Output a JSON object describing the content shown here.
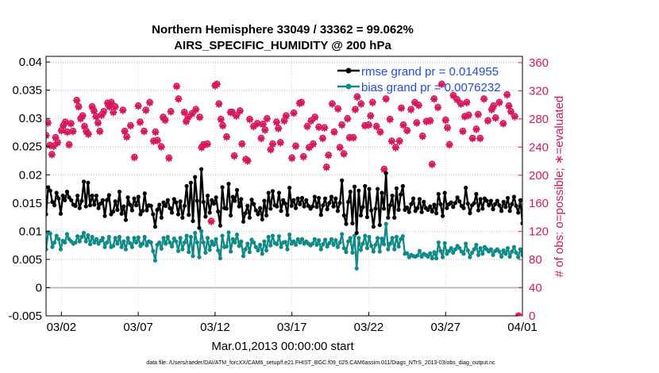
{
  "chart_data": {
    "type": "line",
    "title_line1": "Northern Hemisphere 33049 / 33362 = 99.062%",
    "title_line2": "AIRS_SPECIFIC_HUMIDITY @ 200 hPa",
    "xlabel": "Mar.01,2013 00:00:00 start",
    "ylabel_right": "# of obs: o=possible; ∗=evaluated",
    "footnote": "data file: /Users/raeder/DAI/ATM_forcXX/CAM6_setup/f.e21.FHIST_BGC.f09_025.CAM6assim.011/Diags_NTrS_2013-03/obs_diag_output.nc",
    "xlim": [
      0,
      31
    ],
    "ylim_left": [
      -0.005,
      0.041
    ],
    "ylim_right": [
      0,
      369
    ],
    "x_ticks": [
      {
        "x": 1,
        "label": "03/02"
      },
      {
        "x": 6,
        "label": "03/07"
      },
      {
        "x": 11,
        "label": "03/12"
      },
      {
        "x": 16,
        "label": "03/17"
      },
      {
        "x": 21,
        "label": "03/22"
      },
      {
        "x": 26,
        "label": "03/27"
      },
      {
        "x": 31,
        "label": "04/01"
      }
    ],
    "y_ticks_left": [
      {
        "v": -0.005,
        "label": "-0.005"
      },
      {
        "v": 0,
        "label": "0"
      },
      {
        "v": 0.005,
        "label": "0.005"
      },
      {
        "v": 0.01,
        "label": "0.01"
      },
      {
        "v": 0.015,
        "label": "0.015"
      },
      {
        "v": 0.02,
        "label": "0.02"
      },
      {
        "v": 0.025,
        "label": "0.025"
      },
      {
        "v": 0.03,
        "label": "0.03"
      },
      {
        "v": 0.035,
        "label": "0.035"
      },
      {
        "v": 0.04,
        "label": "0.04"
      }
    ],
    "y_ticks_right": [
      {
        "v": 0,
        "label": "0"
      },
      {
        "v": 40,
        "label": "40"
      },
      {
        "v": 80,
        "label": "80"
      },
      {
        "v": 120,
        "label": "120"
      },
      {
        "v": 160,
        "label": "160"
      },
      {
        "v": 200,
        "label": "200"
      },
      {
        "v": 240,
        "label": "240"
      },
      {
        "v": 280,
        "label": "280"
      },
      {
        "v": 320,
        "label": "320"
      },
      {
        "v": 360,
        "label": "360"
      }
    ],
    "legend": [
      {
        "name": "rmse grand pr = 0.014955",
        "color": "#000000"
      },
      {
        "name": "bias grand pr = 0.0076232",
        "color": "#108a86"
      }
    ],
    "series": [
      {
        "name": "rmse",
        "color": "#000000",
        "values": [
          0.013,
          0.0178,
          0.0172,
          0.0152,
          0.0146,
          0.0168,
          0.0158,
          0.0131,
          0.0163,
          0.0155,
          0.017,
          0.016,
          0.0155,
          0.0147,
          0.0145,
          0.0163,
          0.0141,
          0.0154,
          0.0188,
          0.0144,
          0.0186,
          0.0146,
          0.0163,
          0.0147,
          0.0163,
          0.0141,
          0.0149,
          0.0155,
          0.0127,
          0.0155,
          0.0164,
          0.013,
          0.0135,
          0.0153,
          0.0138,
          0.017,
          0.0131,
          0.0144,
          0.012,
          0.016,
          0.0147,
          0.0137,
          0.0158,
          0.0146,
          0.0161,
          0.013,
          0.0136,
          0.0167,
          0.0137,
          0.0146,
          0.0145,
          0.013,
          0.0108,
          0.0138,
          0.0147,
          0.0124,
          0.0151,
          0.0145,
          0.0155,
          0.0141,
          0.0133,
          0.0157,
          0.0151,
          0.013,
          0.0153,
          0.0124,
          0.0145,
          0.018,
          0.0129,
          0.0186,
          0.0118,
          0.0196,
          0.0154,
          0.0106,
          0.021,
          0.0152,
          0.0126,
          0.0163,
          0.0133,
          0.0155,
          0.0149,
          0.016,
          0.0135,
          0.011,
          0.0178,
          0.0141,
          0.014,
          0.0184,
          0.0128,
          0.0161,
          0.0154,
          0.0173,
          0.0144,
          0.0157,
          0.0117,
          0.0132,
          0.0145,
          0.0124,
          0.0156,
          0.0148,
          0.0137,
          0.013,
          0.0141,
          0.0121,
          0.0154,
          0.0128,
          0.0168,
          0.014,
          0.0171,
          0.0146,
          0.0144,
          0.0168,
          0.0136,
          0.0155,
          0.0149,
          0.0129,
          0.0177,
          0.0145,
          0.0155,
          0.0141,
          0.0158,
          0.0148,
          0.0159,
          0.0144,
          0.0155,
          0.0145,
          0.014,
          0.0144,
          0.0161,
          0.0143,
          0.0159,
          0.0129,
          0.0146,
          0.0158,
          0.0139,
          0.015,
          0.0161,
          0.0144,
          0.0158,
          0.0136,
          0.015,
          0.019,
          0.0128,
          0.0113,
          0.0152,
          0.017,
          0.0114,
          0.0179,
          0.0097,
          0.0172,
          0.0128,
          0.0143,
          0.018,
          0.0125,
          0.0175,
          0.0137,
          0.0108,
          0.014,
          0.0175,
          0.0111,
          0.0168,
          0.014,
          0.0203,
          0.0124,
          0.0146,
          0.0163,
          0.0124,
          0.0176,
          0.0138,
          0.0165,
          0.018,
          0.0138,
          0.0142,
          0.0134,
          0.0148,
          0.0158,
          0.0136,
          0.0141,
          0.0157,
          0.0134,
          0.0152,
          0.0141,
          0.0138,
          0.0144,
          0.0135,
          0.0147,
          0.0132,
          0.0166,
          0.0148,
          0.0127,
          0.0168,
          0.0141,
          0.0148,
          0.0151,
          0.0143,
          0.015,
          0.016,
          0.0153,
          0.0145,
          0.0141,
          0.0177,
          0.0149,
          0.0132,
          0.0146,
          0.015,
          0.0166,
          0.0137,
          0.0157,
          0.014,
          0.0158,
          0.0154,
          0.0146,
          0.0154,
          0.0139,
          0.0148,
          0.0154,
          0.0146,
          0.0136,
          0.0152,
          0.0143,
          0.0159,
          0.0136,
          0.0148,
          0.0161,
          0.0145,
          0.0133,
          0.0155,
          0.0114
        ]
      },
      {
        "name": "bias",
        "color": "#108a86",
        "values": [
          0.0068,
          0.0098,
          0.0096,
          0.0072,
          0.008,
          0.0092,
          0.0086,
          0.0068,
          0.0083,
          0.008,
          0.0095,
          0.0086,
          0.0082,
          0.0078,
          0.008,
          0.0091,
          0.0082,
          0.009,
          0.0097,
          0.0082,
          0.0093,
          0.0077,
          0.009,
          0.008,
          0.0086,
          0.0078,
          0.0083,
          0.0088,
          0.0072,
          0.008,
          0.009,
          0.0072,
          0.0074,
          0.0088,
          0.0078,
          0.009,
          0.0072,
          0.0082,
          0.0068,
          0.0088,
          0.0079,
          0.0072,
          0.0088,
          0.008,
          0.0089,
          0.0074,
          0.0078,
          0.009,
          0.0075,
          0.0082,
          0.008,
          0.0065,
          0.0048,
          0.0076,
          0.008,
          0.0069,
          0.0088,
          0.0078,
          0.009,
          0.008,
          0.0073,
          0.0087,
          0.0082,
          0.0065,
          0.0088,
          0.0068,
          0.008,
          0.0092,
          0.0063,
          0.009,
          0.0056,
          0.0097,
          0.008,
          0.0054,
          0.01,
          0.008,
          0.0062,
          0.0088,
          0.0067,
          0.0082,
          0.0076,
          0.0086,
          0.0066,
          0.0052,
          0.0092,
          0.0072,
          0.0073,
          0.0098,
          0.0064,
          0.0086,
          0.008,
          0.0094,
          0.0074,
          0.0082,
          0.0056,
          0.0068,
          0.0078,
          0.0063,
          0.0085,
          0.008,
          0.0072,
          0.0066,
          0.0076,
          0.006,
          0.0082,
          0.0066,
          0.009,
          0.0075,
          0.0092,
          0.0079,
          0.0077,
          0.0091,
          0.0072,
          0.008,
          0.0081,
          0.0068,
          0.0094,
          0.0078,
          0.0082,
          0.0076,
          0.0086,
          0.008,
          0.0086,
          0.0078,
          0.0082,
          0.0078,
          0.0075,
          0.0078,
          0.0086,
          0.0076,
          0.0084,
          0.0068,
          0.0077,
          0.0085,
          0.0073,
          0.0079,
          0.0086,
          0.0076,
          0.0084,
          0.0072,
          0.008,
          0.0095,
          0.007,
          0.0063,
          0.0082,
          0.0088,
          0.0062,
          0.0092,
          0.0034,
          0.0088,
          0.0067,
          0.0078,
          0.0092,
          0.007,
          0.009,
          0.0074,
          0.0064,
          0.0076,
          0.0088,
          0.0064,
          0.0087,
          0.0077,
          0.0113,
          0.0068,
          0.0078,
          0.0088,
          0.0068,
          0.009,
          0.0073,
          0.0086,
          0.0091,
          0.006,
          0.0061,
          0.0054,
          0.0058,
          0.0056,
          0.0055,
          0.0057,
          0.0065,
          0.0055,
          0.006,
          0.0058,
          0.0055,
          0.0061,
          0.0052,
          0.0063,
          0.0052,
          0.008,
          0.0065,
          0.0054,
          0.0079,
          0.006,
          0.0065,
          0.007,
          0.0062,
          0.0068,
          0.0074,
          0.007,
          0.0064,
          0.006,
          0.0078,
          0.0066,
          0.0054,
          0.0062,
          0.0068,
          0.0076,
          0.0058,
          0.007,
          0.006,
          0.0072,
          0.0068,
          0.0064,
          0.0068,
          0.0058,
          0.0065,
          0.0068,
          0.0064,
          0.0055,
          0.0066,
          0.006,
          0.007,
          0.0055,
          0.0064,
          0.0072,
          0.0062,
          0.0054,
          0.0068,
          0.0058
        ]
      }
    ],
    "obs_counts": {
      "color": "#d6175e",
      "x": [
        0.0,
        0.12,
        0.25,
        0.38,
        0.5,
        0.62,
        0.75,
        1.0,
        1.12,
        1.25,
        1.38,
        1.5,
        1.62,
        1.75,
        2.0,
        2.12,
        2.25,
        2.38,
        2.5,
        2.62,
        2.75,
        3.0,
        3.12,
        3.25,
        3.38,
        3.5,
        3.62,
        3.75,
        4.0,
        4.12,
        4.25,
        4.38,
        4.5,
        5.0,
        5.12,
        5.25,
        5.5,
        5.75,
        6.0,
        6.12,
        6.38,
        6.5,
        6.75,
        7.0,
        7.12,
        7.25,
        7.5,
        7.62,
        7.75,
        8.0,
        8.12,
        8.5,
        8.62,
        9.0,
        9.12,
        9.25,
        9.5,
        9.75,
        10.0,
        10.12,
        10.25,
        10.5,
        10.75,
        11.0,
        11.12,
        11.25,
        11.38,
        11.5,
        11.75,
        12.0,
        12.12,
        12.25,
        12.38,
        12.62,
        12.75,
        13.0,
        13.12,
        13.25,
        13.5,
        13.75,
        14.0,
        14.12,
        14.25,
        14.38,
        14.62,
        14.75,
        15.0,
        15.12,
        15.25,
        15.5,
        15.62,
        16.0,
        16.12,
        16.25,
        16.5,
        16.62,
        16.75,
        17.0,
        17.12,
        17.25,
        17.38,
        17.5,
        17.75,
        18.0,
        18.12,
        18.25,
        18.38,
        18.62,
        18.75,
        19.0,
        19.12,
        19.25,
        19.38,
        19.62,
        19.75,
        20.0,
        20.12,
        20.25,
        20.5,
        20.75,
        21.0,
        21.12,
        21.25,
        21.5,
        21.75,
        22.0,
        22.12,
        22.38,
        22.5,
        22.75,
        23.0,
        23.12,
        23.25,
        23.5,
        23.75,
        24.0,
        24.12,
        24.25,
        24.5,
        24.75,
        25.0,
        25.12,
        25.25,
        25.5,
        25.75,
        26.0,
        26.12,
        26.25,
        26.5,
        26.75,
        27.0,
        27.12,
        27.25,
        27.38,
        27.5,
        27.75,
        28.0,
        28.12,
        28.25,
        28.5,
        28.75,
        29.0,
        29.12,
        29.25,
        29.5,
        29.75,
        30.0,
        30.12,
        30.25,
        30.5,
        30.75,
        31.0
      ],
      "possible": [
        257,
        275,
        243,
        230,
        242,
        254,
        247,
        264,
        271,
        276,
        262,
        244,
        274,
        263,
        307,
        298,
        281,
        285,
        270,
        263,
        259,
        298,
        292,
        284,
        275,
        263,
        286,
        291,
        303,
        298,
        304,
        290,
        298,
        293,
        263,
        255,
        271,
        226,
        299,
        276,
        263,
        293,
        304,
        249,
        262,
        250,
        241,
        283,
        279,
        225,
        291,
        327,
        309,
        290,
        277,
        283,
        288,
        294,
        283,
        240,
        244,
        245,
        135,
        328,
        330,
        302,
        280,
        271,
        255,
        290,
        290,
        228,
        285,
        292,
        245,
        223,
        221,
        280,
        270,
        274,
        253,
        273,
        265,
        281,
        237,
        245,
        276,
        267,
        247,
        278,
        285,
        225,
        289,
        242,
        303,
        304,
        227,
        270,
        240,
        278,
        245,
        283,
        269,
        253,
        268,
        212,
        229,
        302,
        262,
        295,
        240,
        272,
        231,
        281,
        254,
        254,
        294,
        312,
        302,
        271,
        272,
        285,
        304,
        270,
        262,
        209,
        309,
        280,
        249,
        240,
        249,
        296,
        272,
        264,
        294,
        304,
        275,
        300,
        256,
        277,
        278,
        216,
        309,
        297,
        330,
        279,
        268,
        244,
        314,
        308,
        302,
        263,
        284,
        304,
        286,
        253,
        266,
        287,
        253,
        309,
        278,
        294,
        299,
        282,
        304,
        274,
        315,
        299,
        291,
        284,
        0
      ],
      "evaluated": [
        256,
        274,
        242,
        229,
        241,
        253,
        246,
        263,
        270,
        275,
        261,
        243,
        273,
        262,
        306,
        297,
        280,
        284,
        269,
        262,
        258,
        297,
        291,
        283,
        274,
        262,
        285,
        290,
        302,
        297,
        303,
        289,
        297,
        292,
        262,
        254,
        270,
        225,
        298,
        275,
        262,
        292,
        303,
        248,
        261,
        249,
        240,
        282,
        278,
        224,
        290,
        326,
        308,
        289,
        276,
        282,
        287,
        293,
        282,
        239,
        243,
        244,
        134,
        327,
        329,
        301,
        279,
        270,
        254,
        289,
        289,
        227,
        284,
        291,
        244,
        222,
        220,
        279,
        269,
        273,
        252,
        272,
        264,
        280,
        236,
        244,
        275,
        266,
        246,
        277,
        284,
        224,
        288,
        241,
        302,
        303,
        226,
        269,
        239,
        277,
        244,
        282,
        268,
        252,
        267,
        211,
        228,
        301,
        261,
        294,
        239,
        271,
        230,
        280,
        253,
        253,
        293,
        311,
        301,
        270,
        271,
        284,
        303,
        269,
        261,
        208,
        308,
        279,
        248,
        239,
        248,
        295,
        271,
        263,
        293,
        303,
        274,
        299,
        255,
        276,
        277,
        215,
        308,
        296,
        329,
        278,
        267,
        243,
        313,
        307,
        301,
        262,
        283,
        303,
        285,
        252,
        265,
        286,
        252,
        308,
        277,
        293,
        298,
        281,
        303,
        273,
        314,
        298,
        290,
        283,
        0
      ]
    }
  }
}
